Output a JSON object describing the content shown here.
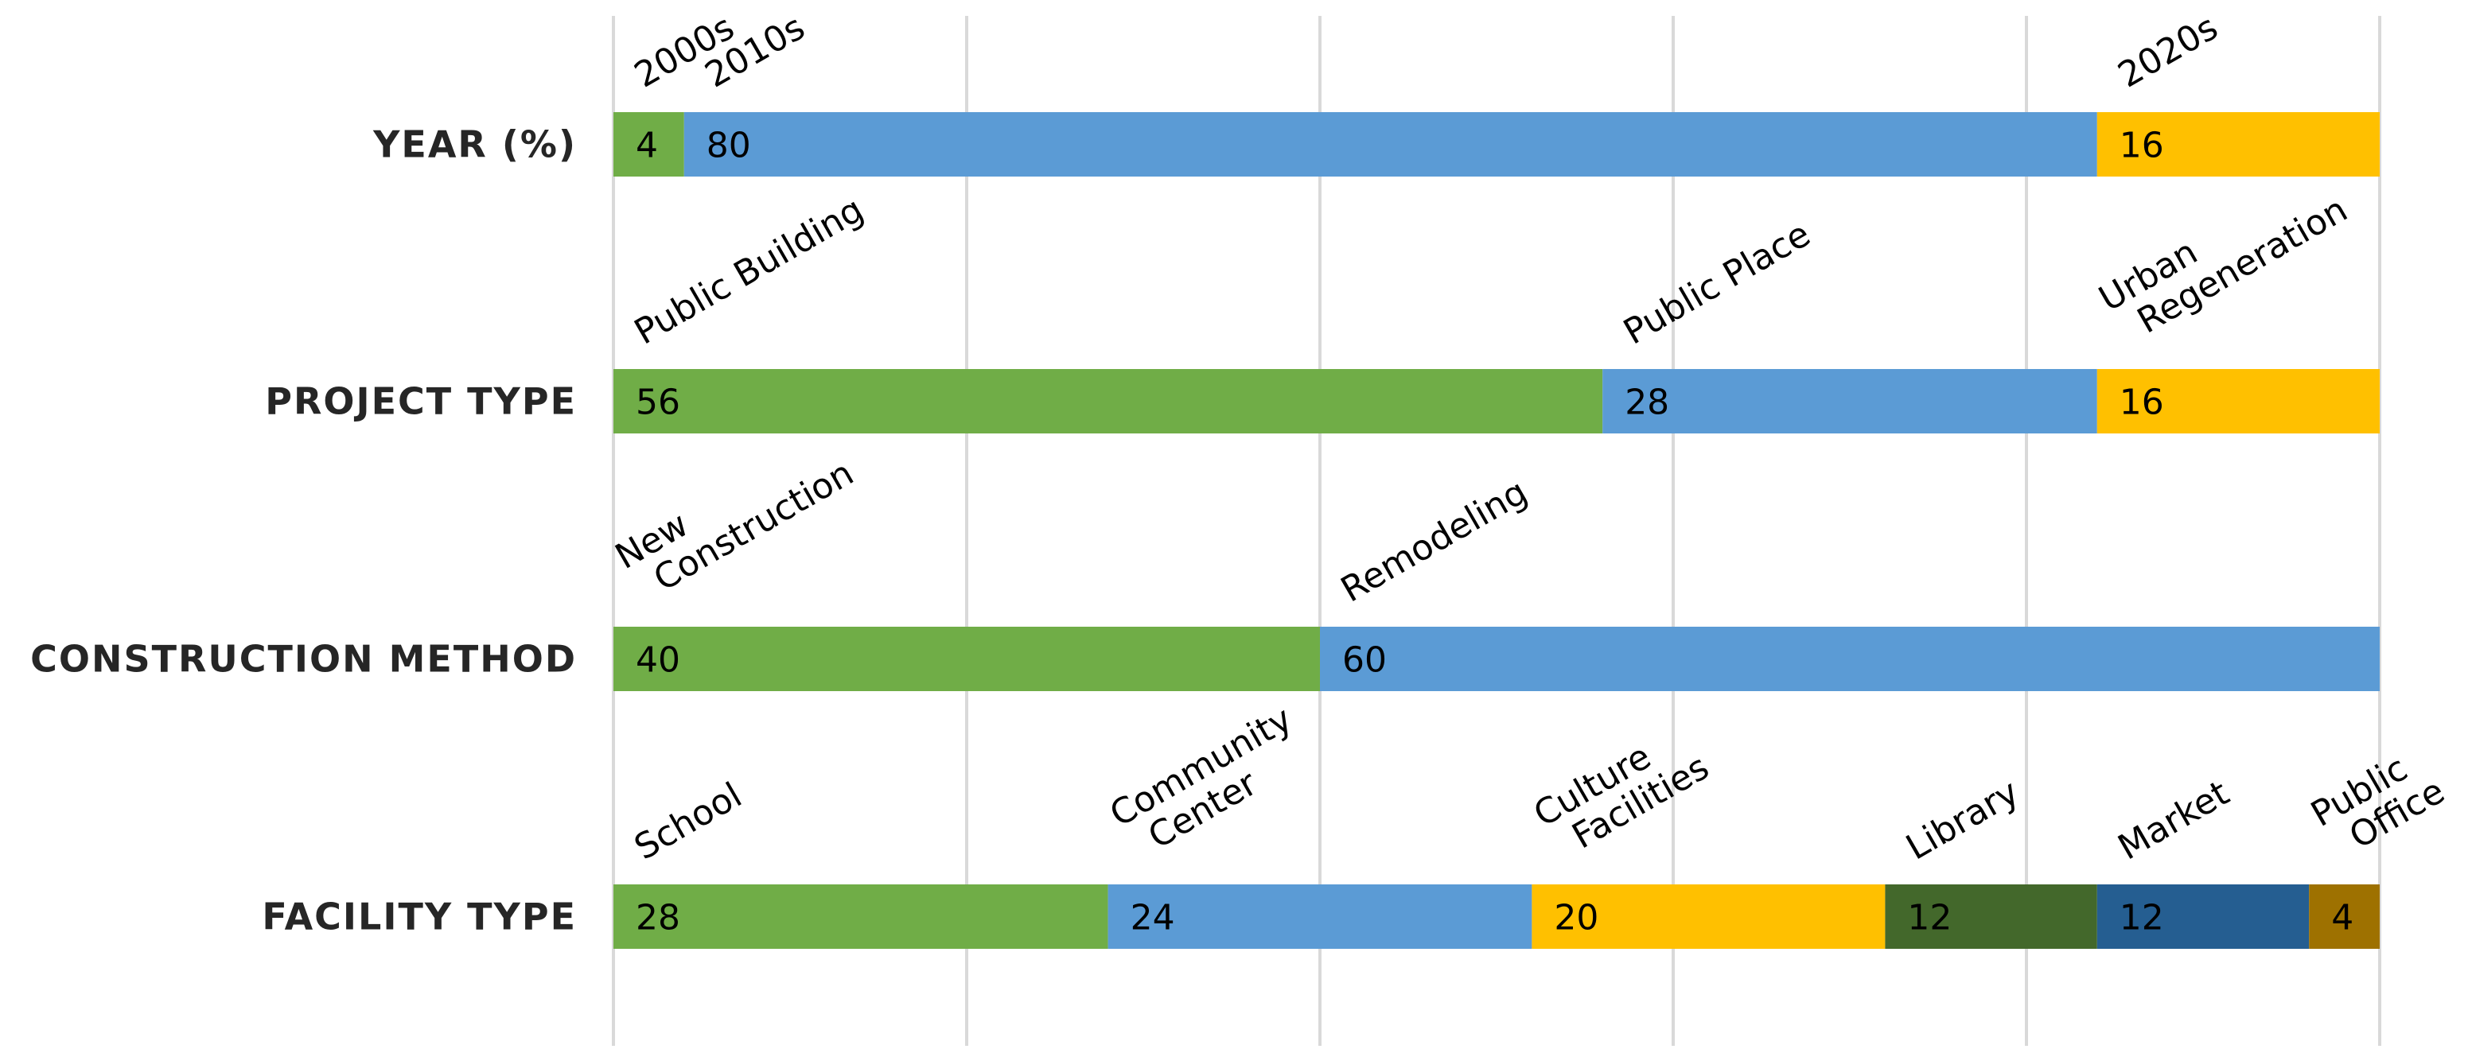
{
  "chart_data": {
    "type": "bar",
    "orientation": "horizontal",
    "stacked": true,
    "xlim": [
      0,
      100
    ],
    "grid": true,
    "legend": "none",
    "rows": [
      {
        "category": "YEAR (%)",
        "segments": [
          {
            "label": "2000s",
            "value": 4,
            "color": "#70ad47"
          },
          {
            "label": "2010s",
            "value": 80,
            "color": "#5b9bd5"
          },
          {
            "label": "2020s",
            "value": 16,
            "color": "#ffc000"
          }
        ]
      },
      {
        "category": "PROJECT TYPE",
        "segments": [
          {
            "label": "Public Building",
            "value": 56,
            "color": "#70ad47"
          },
          {
            "label": "Public Place",
            "value": 28,
            "color": "#5b9bd5"
          },
          {
            "label": "Urban\nRegeneration",
            "value": 16,
            "color": "#ffc000"
          }
        ]
      },
      {
        "category": "CONSTRUCTION METHOD",
        "segments": [
          {
            "label": "New\nConstruction",
            "value": 40,
            "color": "#70ad47"
          },
          {
            "label": "Remodeling",
            "value": 60,
            "color": "#5b9bd5"
          }
        ]
      },
      {
        "category": "FACILITY TYPE",
        "segments": [
          {
            "label": "School",
            "value": 28,
            "color": "#70ad47"
          },
          {
            "label": "Community\nCenter",
            "value": 24,
            "color": "#5b9bd5"
          },
          {
            "label": "Culture\nFacilities",
            "value": 20,
            "color": "#ffc000"
          },
          {
            "label": "Library",
            "value": 12,
            "color": "#43682b"
          },
          {
            "label": "Market",
            "value": 12,
            "color": "#255e91"
          },
          {
            "label": "Public\nOffice",
            "value": 4,
            "color": "#9e7100"
          }
        ]
      }
    ]
  }
}
